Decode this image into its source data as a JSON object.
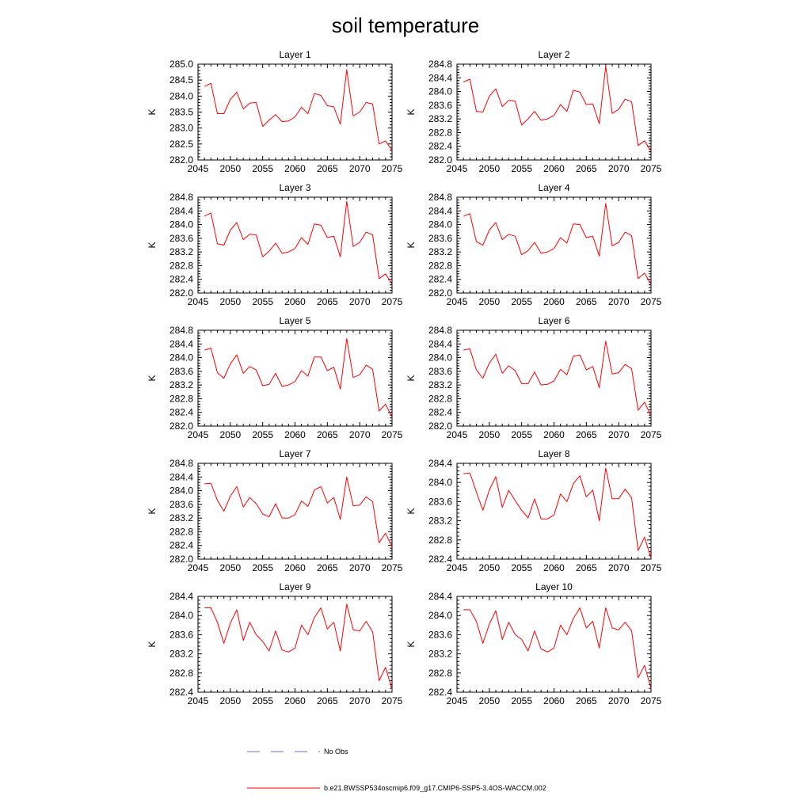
{
  "figure": {
    "title": "soil temperature",
    "legend": [
      {
        "label": "No Obs",
        "color": "#6a6fd0",
        "style": "dashed"
      },
      {
        "label": "b.e21.BWSSP534oscmip6.f09_g17.CMIP6-SSP5-3.4OS-WACCM.002",
        "color": "#ff0000",
        "style": "solid"
      }
    ]
  },
  "chart_data": [
    {
      "type": "line",
      "title": "Layer 1",
      "ylabel": "K",
      "xlim": [
        2045,
        2075
      ],
      "ylim": [
        282.0,
        285.0
      ],
      "xticks": [
        "2045",
        "2050",
        "2055",
        "2060",
        "2065",
        "2070",
        "2075"
      ],
      "yticks": [
        "282.0",
        "282.5",
        "283.0",
        "283.5",
        "284.0",
        "284.5",
        "285.0"
      ],
      "x": [
        2046,
        2047,
        2048,
        2049,
        2050,
        2051,
        2052,
        2053,
        2054,
        2055,
        2056,
        2057,
        2058,
        2059,
        2060,
        2061,
        2062,
        2063,
        2064,
        2065,
        2066,
        2067,
        2068,
        2069,
        2070,
        2071,
        2072,
        2073,
        2074,
        2075
      ],
      "series": [
        {
          "color": "#ff0000",
          "values": [
            284.3,
            284.4,
            283.45,
            283.45,
            283.9,
            284.12,
            283.6,
            283.78,
            283.8,
            283.05,
            283.25,
            283.42,
            283.2,
            283.22,
            283.35,
            283.65,
            283.45,
            284.08,
            284.02,
            283.7,
            283.66,
            283.12,
            284.83,
            283.38,
            283.5,
            283.8,
            283.75,
            282.5,
            282.6,
            282.3
          ]
        }
      ]
    },
    {
      "type": "line",
      "title": "Layer 2",
      "ylabel": "K",
      "xlim": [
        2045,
        2075
      ],
      "ylim": [
        282.0,
        284.8
      ],
      "xticks": [
        "2045",
        "2050",
        "2055",
        "2060",
        "2065",
        "2070",
        "2075"
      ],
      "yticks": [
        "282.0",
        "282.4",
        "282.8",
        "283.2",
        "283.6",
        "284.0",
        "284.4",
        "284.8"
      ],
      "x": [
        2046,
        2047,
        2048,
        2049,
        2050,
        2051,
        2052,
        2053,
        2054,
        2055,
        2056,
        2057,
        2058,
        2059,
        2060,
        2061,
        2062,
        2063,
        2064,
        2065,
        2066,
        2067,
        2068,
        2069,
        2070,
        2071,
        2072,
        2073,
        2074,
        2075
      ],
      "series": [
        {
          "color": "#ff0000",
          "values": [
            284.28,
            284.36,
            283.42,
            283.4,
            283.86,
            284.08,
            283.56,
            283.74,
            283.72,
            283.02,
            283.2,
            283.42,
            283.16,
            283.2,
            283.3,
            283.62,
            283.42,
            284.04,
            283.98,
            283.62,
            283.64,
            283.06,
            284.74,
            283.36,
            283.48,
            283.78,
            283.7,
            282.42,
            282.56,
            282.26
          ]
        }
      ]
    },
    {
      "type": "line",
      "title": "Layer 3",
      "ylabel": "K",
      "xlim": [
        2045,
        2075
      ],
      "ylim": [
        282.0,
        284.8
      ],
      "xticks": [
        "2045",
        "2050",
        "2055",
        "2060",
        "2065",
        "2070",
        "2075"
      ],
      "yticks": [
        "282.0",
        "282.4",
        "282.8",
        "283.2",
        "283.6",
        "284.0",
        "284.4",
        "284.8"
      ],
      "x": [
        2046,
        2047,
        2048,
        2049,
        2050,
        2051,
        2052,
        2053,
        2054,
        2055,
        2056,
        2057,
        2058,
        2059,
        2060,
        2061,
        2062,
        2063,
        2064,
        2065,
        2066,
        2067,
        2068,
        2069,
        2070,
        2071,
        2072,
        2073,
        2074,
        2075
      ],
      "series": [
        {
          "color": "#ff0000",
          "values": [
            284.25,
            284.34,
            283.44,
            283.4,
            283.84,
            284.06,
            283.56,
            283.72,
            283.7,
            283.06,
            283.22,
            283.46,
            283.16,
            283.2,
            283.3,
            283.62,
            283.42,
            284.02,
            283.98,
            283.62,
            283.66,
            283.06,
            284.68,
            283.36,
            283.48,
            283.78,
            283.7,
            282.42,
            282.56,
            282.26
          ]
        }
      ]
    },
    {
      "type": "line",
      "title": "Layer 4",
      "ylabel": "K",
      "xlim": [
        2045,
        2075
      ],
      "ylim": [
        282.0,
        284.8
      ],
      "xticks": [
        "2045",
        "2050",
        "2055",
        "2060",
        "2065",
        "2070",
        "2075"
      ],
      "yticks": [
        "282.0",
        "282.4",
        "282.8",
        "283.2",
        "283.6",
        "284.0",
        "284.4",
        "284.8"
      ],
      "x": [
        2046,
        2047,
        2048,
        2049,
        2050,
        2051,
        2052,
        2053,
        2054,
        2055,
        2056,
        2057,
        2058,
        2059,
        2060,
        2061,
        2062,
        2063,
        2064,
        2065,
        2066,
        2067,
        2068,
        2069,
        2070,
        2071,
        2072,
        2073,
        2074,
        2075
      ],
      "series": [
        {
          "color": "#ff0000",
          "values": [
            284.24,
            284.32,
            283.5,
            283.4,
            283.84,
            284.06,
            283.56,
            283.72,
            283.66,
            283.12,
            283.24,
            283.48,
            283.16,
            283.2,
            283.3,
            283.62,
            283.46,
            284.02,
            284.0,
            283.62,
            283.66,
            283.08,
            284.62,
            283.38,
            283.48,
            283.78,
            283.68,
            282.42,
            282.58,
            282.26
          ]
        }
      ]
    },
    {
      "type": "line",
      "title": "Layer 5",
      "ylabel": "K",
      "xlim": [
        2045,
        2075
      ],
      "ylim": [
        282.0,
        284.8
      ],
      "xticks": [
        "2045",
        "2050",
        "2055",
        "2060",
        "2065",
        "2070",
        "2075"
      ],
      "yticks": [
        "282.0",
        "282.4",
        "282.8",
        "283.2",
        "283.6",
        "284.0",
        "284.4",
        "284.8"
      ],
      "x": [
        2046,
        2047,
        2048,
        2049,
        2050,
        2051,
        2052,
        2053,
        2054,
        2055,
        2056,
        2057,
        2058,
        2059,
        2060,
        2061,
        2062,
        2063,
        2064,
        2065,
        2066,
        2067,
        2068,
        2069,
        2070,
        2071,
        2072,
        2073,
        2074,
        2075
      ],
      "series": [
        {
          "color": "#ff0000",
          "values": [
            284.22,
            284.28,
            283.56,
            283.4,
            283.82,
            284.08,
            283.54,
            283.74,
            283.64,
            283.18,
            283.22,
            283.54,
            283.16,
            283.2,
            283.3,
            283.62,
            283.46,
            284.02,
            284.02,
            283.62,
            283.72,
            283.08,
            284.56,
            283.42,
            283.5,
            283.78,
            283.66,
            282.44,
            282.64,
            282.26
          ]
        }
      ]
    },
    {
      "type": "line",
      "title": "Layer 6",
      "ylabel": "K",
      "xlim": [
        2045,
        2075
      ],
      "ylim": [
        282.0,
        284.8
      ],
      "xticks": [
        "2045",
        "2050",
        "2055",
        "2060",
        "2065",
        "2070",
        "2075"
      ],
      "yticks": [
        "282.0",
        "282.4",
        "282.8",
        "283.2",
        "283.6",
        "284.0",
        "284.4",
        "284.8"
      ],
      "x": [
        2046,
        2047,
        2048,
        2049,
        2050,
        2051,
        2052,
        2053,
        2054,
        2055,
        2056,
        2057,
        2058,
        2059,
        2060,
        2061,
        2062,
        2063,
        2064,
        2065,
        2066,
        2067,
        2068,
        2069,
        2070,
        2071,
        2072,
        2073,
        2074,
        2075
      ],
      "series": [
        {
          "color": "#ff0000",
          "values": [
            284.22,
            284.26,
            283.64,
            283.4,
            283.84,
            284.1,
            283.54,
            283.76,
            283.62,
            283.24,
            283.24,
            283.58,
            283.2,
            283.22,
            283.32,
            283.66,
            283.5,
            284.04,
            284.08,
            283.64,
            283.74,
            283.12,
            284.48,
            283.52,
            283.56,
            283.8,
            283.68,
            282.46,
            282.7,
            282.3
          ]
        }
      ]
    },
    {
      "type": "line",
      "title": "Layer 7",
      "ylabel": "K",
      "xlim": [
        2045,
        2075
      ],
      "ylim": [
        282.0,
        284.8
      ],
      "xticks": [
        "2045",
        "2050",
        "2055",
        "2060",
        "2065",
        "2070",
        "2075"
      ],
      "yticks": [
        "282.0",
        "282.4",
        "282.8",
        "283.2",
        "283.6",
        "284.0",
        "284.4",
        "284.8"
      ],
      "x": [
        2046,
        2047,
        2048,
        2049,
        2050,
        2051,
        2052,
        2053,
        2054,
        2055,
        2056,
        2057,
        2058,
        2059,
        2060,
        2061,
        2062,
        2063,
        2064,
        2065,
        2066,
        2067,
        2068,
        2069,
        2070,
        2071,
        2072,
        2073,
        2074,
        2075
      ],
      "series": [
        {
          "color": "#ff0000",
          "values": [
            284.2,
            284.22,
            283.72,
            283.4,
            283.84,
            284.12,
            283.52,
            283.8,
            283.62,
            283.32,
            283.24,
            283.62,
            283.2,
            283.2,
            283.3,
            283.7,
            283.54,
            284.02,
            284.12,
            283.64,
            283.8,
            283.16,
            284.4,
            283.56,
            283.58,
            283.82,
            283.68,
            282.48,
            282.76,
            282.36
          ]
        }
      ]
    },
    {
      "type": "line",
      "title": "Layer 8",
      "ylabel": "K",
      "xlim": [
        2045,
        2075
      ],
      "ylim": [
        282.4,
        284.4
      ],
      "xticks": [
        "2045",
        "2050",
        "2055",
        "2060",
        "2065",
        "2070",
        "2075"
      ],
      "yticks": [
        "282.4",
        "282.8",
        "283.2",
        "283.6",
        "284.0",
        "284.4"
      ],
      "x": [
        2046,
        2047,
        2048,
        2049,
        2050,
        2051,
        2052,
        2053,
        2054,
        2055,
        2056,
        2057,
        2058,
        2059,
        2060,
        2061,
        2062,
        2063,
        2064,
        2065,
        2066,
        2067,
        2068,
        2069,
        2070,
        2071,
        2072,
        2073,
        2074,
        2075
      ],
      "series": [
        {
          "color": "#ff0000",
          "values": [
            284.18,
            284.2,
            283.8,
            283.42,
            283.84,
            284.12,
            283.48,
            283.84,
            283.62,
            283.42,
            283.26,
            283.66,
            283.24,
            283.24,
            283.32,
            283.76,
            283.6,
            283.98,
            284.14,
            283.7,
            283.84,
            283.2,
            284.3,
            283.66,
            283.66,
            283.86,
            283.68,
            282.58,
            282.86,
            282.42
          ]
        }
      ]
    },
    {
      "type": "line",
      "title": "Layer 9",
      "ylabel": "K",
      "xlim": [
        2045,
        2075
      ],
      "ylim": [
        282.4,
        284.4
      ],
      "xticks": [
        "2045",
        "2050",
        "2055",
        "2060",
        "2065",
        "2070",
        "2075"
      ],
      "yticks": [
        "282.4",
        "282.8",
        "283.2",
        "283.6",
        "284.0",
        "284.4"
      ],
      "x": [
        2046,
        2047,
        2048,
        2049,
        2050,
        2051,
        2052,
        2053,
        2054,
        2055,
        2056,
        2057,
        2058,
        2059,
        2060,
        2061,
        2062,
        2063,
        2064,
        2065,
        2066,
        2067,
        2068,
        2069,
        2070,
        2071,
        2072,
        2073,
        2074,
        2075
      ],
      "series": [
        {
          "color": "#ff0000",
          "values": [
            284.16,
            284.16,
            283.86,
            283.42,
            283.84,
            284.12,
            283.48,
            283.86,
            283.6,
            283.46,
            283.26,
            283.68,
            283.28,
            283.24,
            283.32,
            283.8,
            283.6,
            283.96,
            284.16,
            283.72,
            283.86,
            283.26,
            284.24,
            283.7,
            283.68,
            283.88,
            283.66,
            282.64,
            282.92,
            282.46
          ]
        }
      ]
    },
    {
      "type": "line",
      "title": "Layer 10",
      "ylabel": "K",
      "xlim": [
        2045,
        2075
      ],
      "ylim": [
        282.4,
        284.4
      ],
      "xticks": [
        "2045",
        "2050",
        "2055",
        "2060",
        "2065",
        "2070",
        "2075"
      ],
      "yticks": [
        "282.4",
        "282.8",
        "283.2",
        "283.6",
        "284.0",
        "284.4"
      ],
      "x": [
        2046,
        2047,
        2048,
        2049,
        2050,
        2051,
        2052,
        2053,
        2054,
        2055,
        2056,
        2057,
        2058,
        2059,
        2060,
        2061,
        2062,
        2063,
        2064,
        2065,
        2066,
        2067,
        2068,
        2069,
        2070,
        2071,
        2072,
        2073,
        2074,
        2075
      ],
      "series": [
        {
          "color": "#ff0000",
          "values": [
            284.12,
            284.12,
            283.88,
            283.42,
            283.82,
            284.1,
            283.5,
            283.86,
            283.6,
            283.5,
            283.26,
            283.68,
            283.3,
            283.24,
            283.32,
            283.8,
            283.6,
            283.94,
            284.16,
            283.74,
            283.88,
            283.32,
            284.16,
            283.74,
            283.7,
            283.86,
            283.68,
            282.7,
            282.96,
            282.48
          ]
        }
      ]
    }
  ]
}
